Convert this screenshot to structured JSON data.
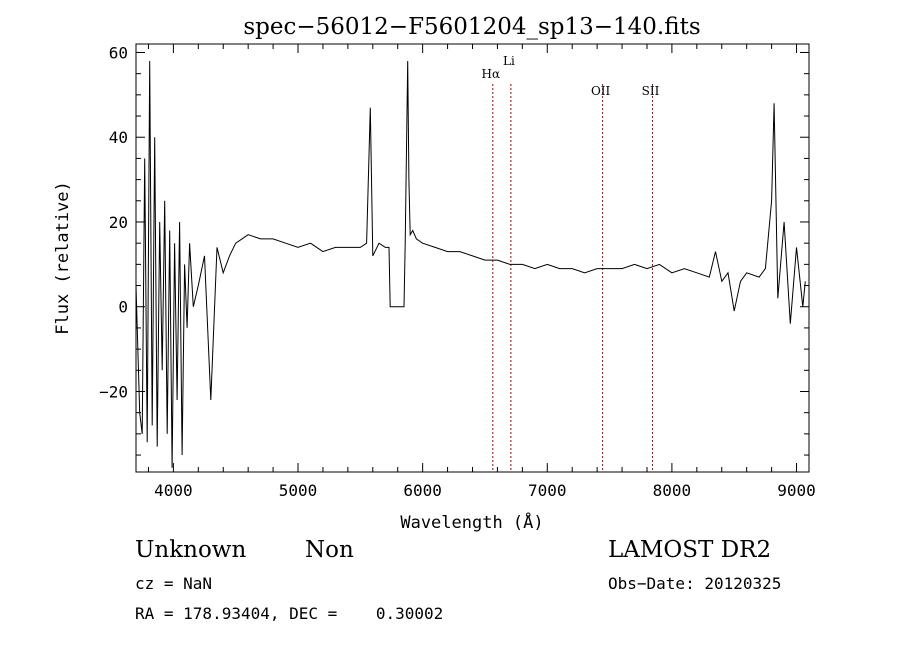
{
  "chart_data": {
    "type": "line",
    "title": "spec−56012−F5601204_sp13−140.fits",
    "xlabel": "Wavelength (Å)",
    "ylabel": "Flux (relative)",
    "xlim": [
      3700,
      9100
    ],
    "ylim": [
      -39,
      62
    ],
    "xticks": [
      4000,
      5000,
      6000,
      7000,
      8000,
      9000
    ],
    "xtick_labels": [
      "4000",
      "5000",
      "6000",
      "7000",
      "8000",
      "9000"
    ],
    "yticks": [
      -20,
      0,
      20,
      40,
      60
    ],
    "ytick_labels": [
      "−20",
      "0",
      "20",
      "40",
      "60"
    ],
    "grid": false,
    "series": [
      {
        "x": [
          3700,
          3730,
          3750,
          3770,
          3790,
          3810,
          3830,
          3850,
          3870,
          3890,
          3910,
          3930,
          3950,
          3970,
          3990,
          4010,
          4030,
          4050,
          4070,
          4090,
          4110,
          4130,
          4160,
          4200,
          4250,
          4300,
          4350,
          4400,
          4450,
          4500,
          4600,
          4700,
          4800,
          4900,
          5000,
          5100,
          5200,
          5300,
          5400,
          5500,
          5550,
          5580,
          5600,
          5650,
          5700,
          5730,
          5740,
          5800,
          5850,
          5860,
          5880,
          5890,
          5900,
          5920,
          5950,
          6000,
          6100,
          6200,
          6300,
          6400,
          6500,
          6600,
          6700,
          6800,
          6900,
          7000,
          7100,
          7200,
          7300,
          7400,
          7500,
          7600,
          7700,
          7800,
          7900,
          8000,
          8100,
          8200,
          8300,
          8350,
          8400,
          8450,
          8500,
          8550,
          8600,
          8700,
          8750,
          8800,
          8820,
          8850,
          8900,
          8950,
          9000,
          9050,
          9070
        ],
        "y": [
          5,
          -25,
          -30,
          35,
          -32,
          58,
          -28,
          40,
          -33,
          20,
          -15,
          25,
          -30,
          18,
          -38,
          15,
          -22,
          20,
          -35,
          10,
          -5,
          15,
          0,
          5,
          12,
          -22,
          14,
          8,
          12,
          15,
          17,
          16,
          16,
          15,
          14,
          15,
          13,
          14,
          14,
          14,
          15,
          47,
          12,
          15,
          14,
          14,
          0,
          0,
          0,
          15,
          58,
          30,
          17,
          18,
          16,
          15,
          14,
          13,
          13,
          12,
          11,
          11,
          10,
          10,
          9,
          10,
          9,
          9,
          8,
          9,
          9,
          9,
          10,
          9,
          10,
          8,
          9,
          8,
          7,
          13,
          6,
          8,
          -1,
          6,
          8,
          7,
          9,
          25,
          48,
          2,
          20,
          -4,
          14,
          0,
          6
        ],
        "color": "#000000"
      }
    ],
    "annotations": [
      {
        "label": "Hα",
        "x": 6563,
        "y": 54
      },
      {
        "label": "Li",
        "x": 6708,
        "y": 57
      },
      {
        "label": "OII",
        "x": 7444,
        "y": 50
      },
      {
        "label": "SII",
        "x": 7844,
        "y": 50
      }
    ]
  },
  "footer": {
    "spec_class": "Unknown",
    "spec_subclass": "Non",
    "survey": "LAMOST DR2",
    "cz": "cz = NaN",
    "obs_date": "Obs−Date: 20120325",
    "radec": "RA = 178.93404, DEC =    0.30002"
  }
}
